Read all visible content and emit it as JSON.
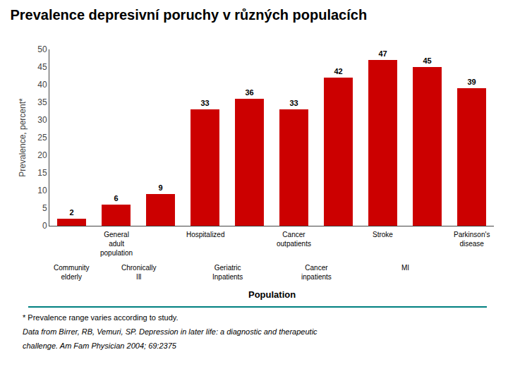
{
  "chart_data": {
    "type": "bar",
    "title": "Prevalence depresivní poruchy v různých populacích",
    "ylabel": "Prevalence, percent*",
    "xlabel": "Population",
    "categories": [
      null,
      null,
      null,
      null,
      null,
      null,
      null,
      null,
      null,
      null
    ],
    "values": [
      2,
      6,
      9,
      33,
      36,
      33,
      42,
      47,
      45,
      39
    ],
    "color": "#CC0000",
    "ylim": [
      0,
      50
    ],
    "yticks": [
      0,
      5,
      10,
      15,
      20,
      25,
      30,
      35,
      40,
      45,
      50
    ],
    "grid": false,
    "data_labels": true,
    "annotations": [
      [
        {
          "x": 1,
          "text": "General\nadult\npopulation"
        },
        {
          "x": 3,
          "text": "Hospitalized"
        },
        {
          "x": 5,
          "text": "Cancer\noutpatients"
        },
        {
          "x": 7,
          "text": "Stroke"
        },
        {
          "x": 9,
          "text": "Parkinson's\ndisease"
        }
      ],
      [
        {
          "x": 0,
          "text": "Community\nelderly"
        },
        {
          "x": 1.5,
          "text": "Chronically\nIll"
        },
        {
          "x": 3.5,
          "text": "Geriatric\nInpatients"
        },
        {
          "x": 5.5,
          "text": "Cancer\ninpatients"
        },
        {
          "x": 7.5,
          "text": "MI"
        }
      ]
    ],
    "footnotes": [
      "* Prevalence range varies according to study.",
      "Data from Birrer, RB, Vemuri, SP. Depression in later life: a diagnostic and therapeutic",
      "challenge. Am Fam Physician 2004; 69:2375"
    ]
  }
}
